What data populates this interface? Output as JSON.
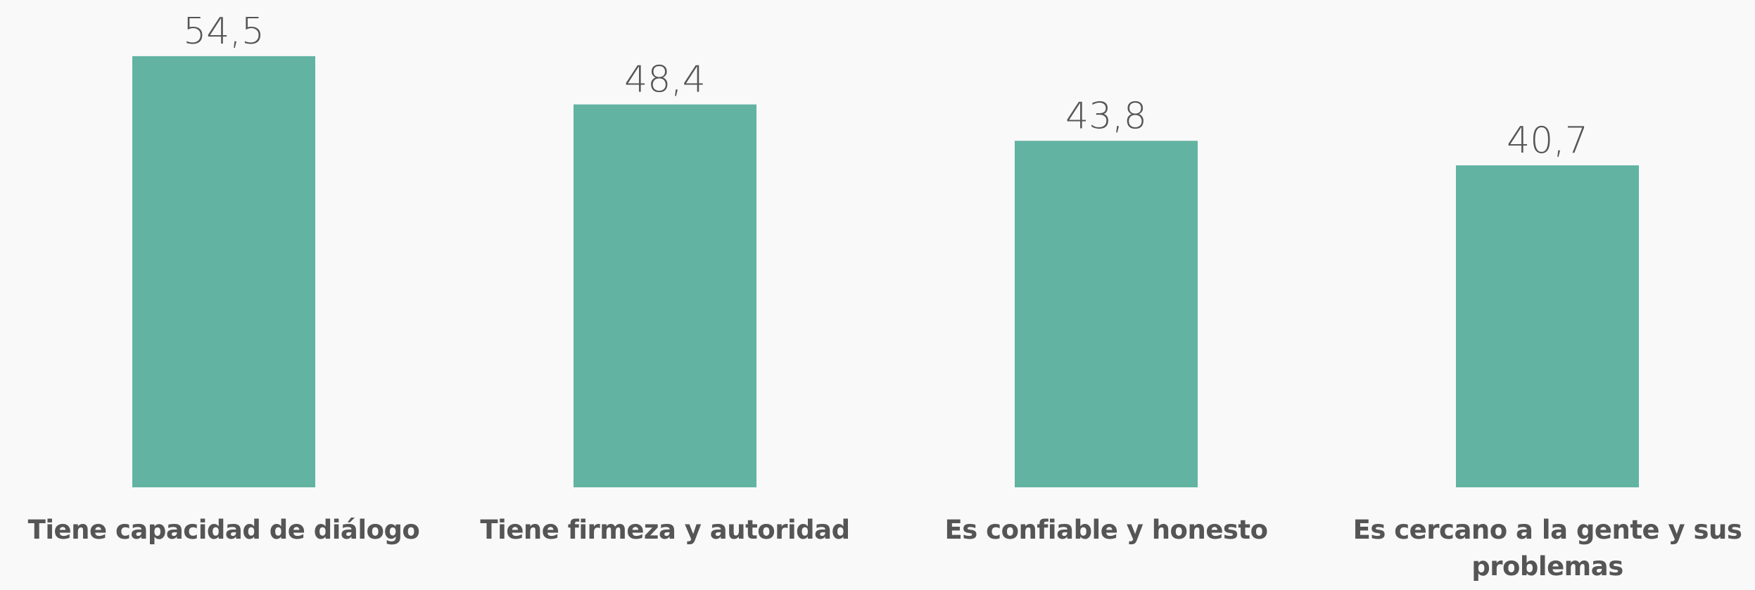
{
  "chart_data": {
    "type": "bar",
    "categories": [
      "Tiene capacidad de diálogo",
      "Tiene firmeza y autoridad",
      "Es confiable y honesto",
      "Es cercano a la gente y sus problemas"
    ],
    "values": [
      54.5,
      48.4,
      43.8,
      40.7
    ],
    "value_labels": [
      "54,5",
      "48,4",
      "43,8",
      "40,7"
    ],
    "color": "#62b3a2",
    "ylim": [
      0,
      60
    ]
  }
}
